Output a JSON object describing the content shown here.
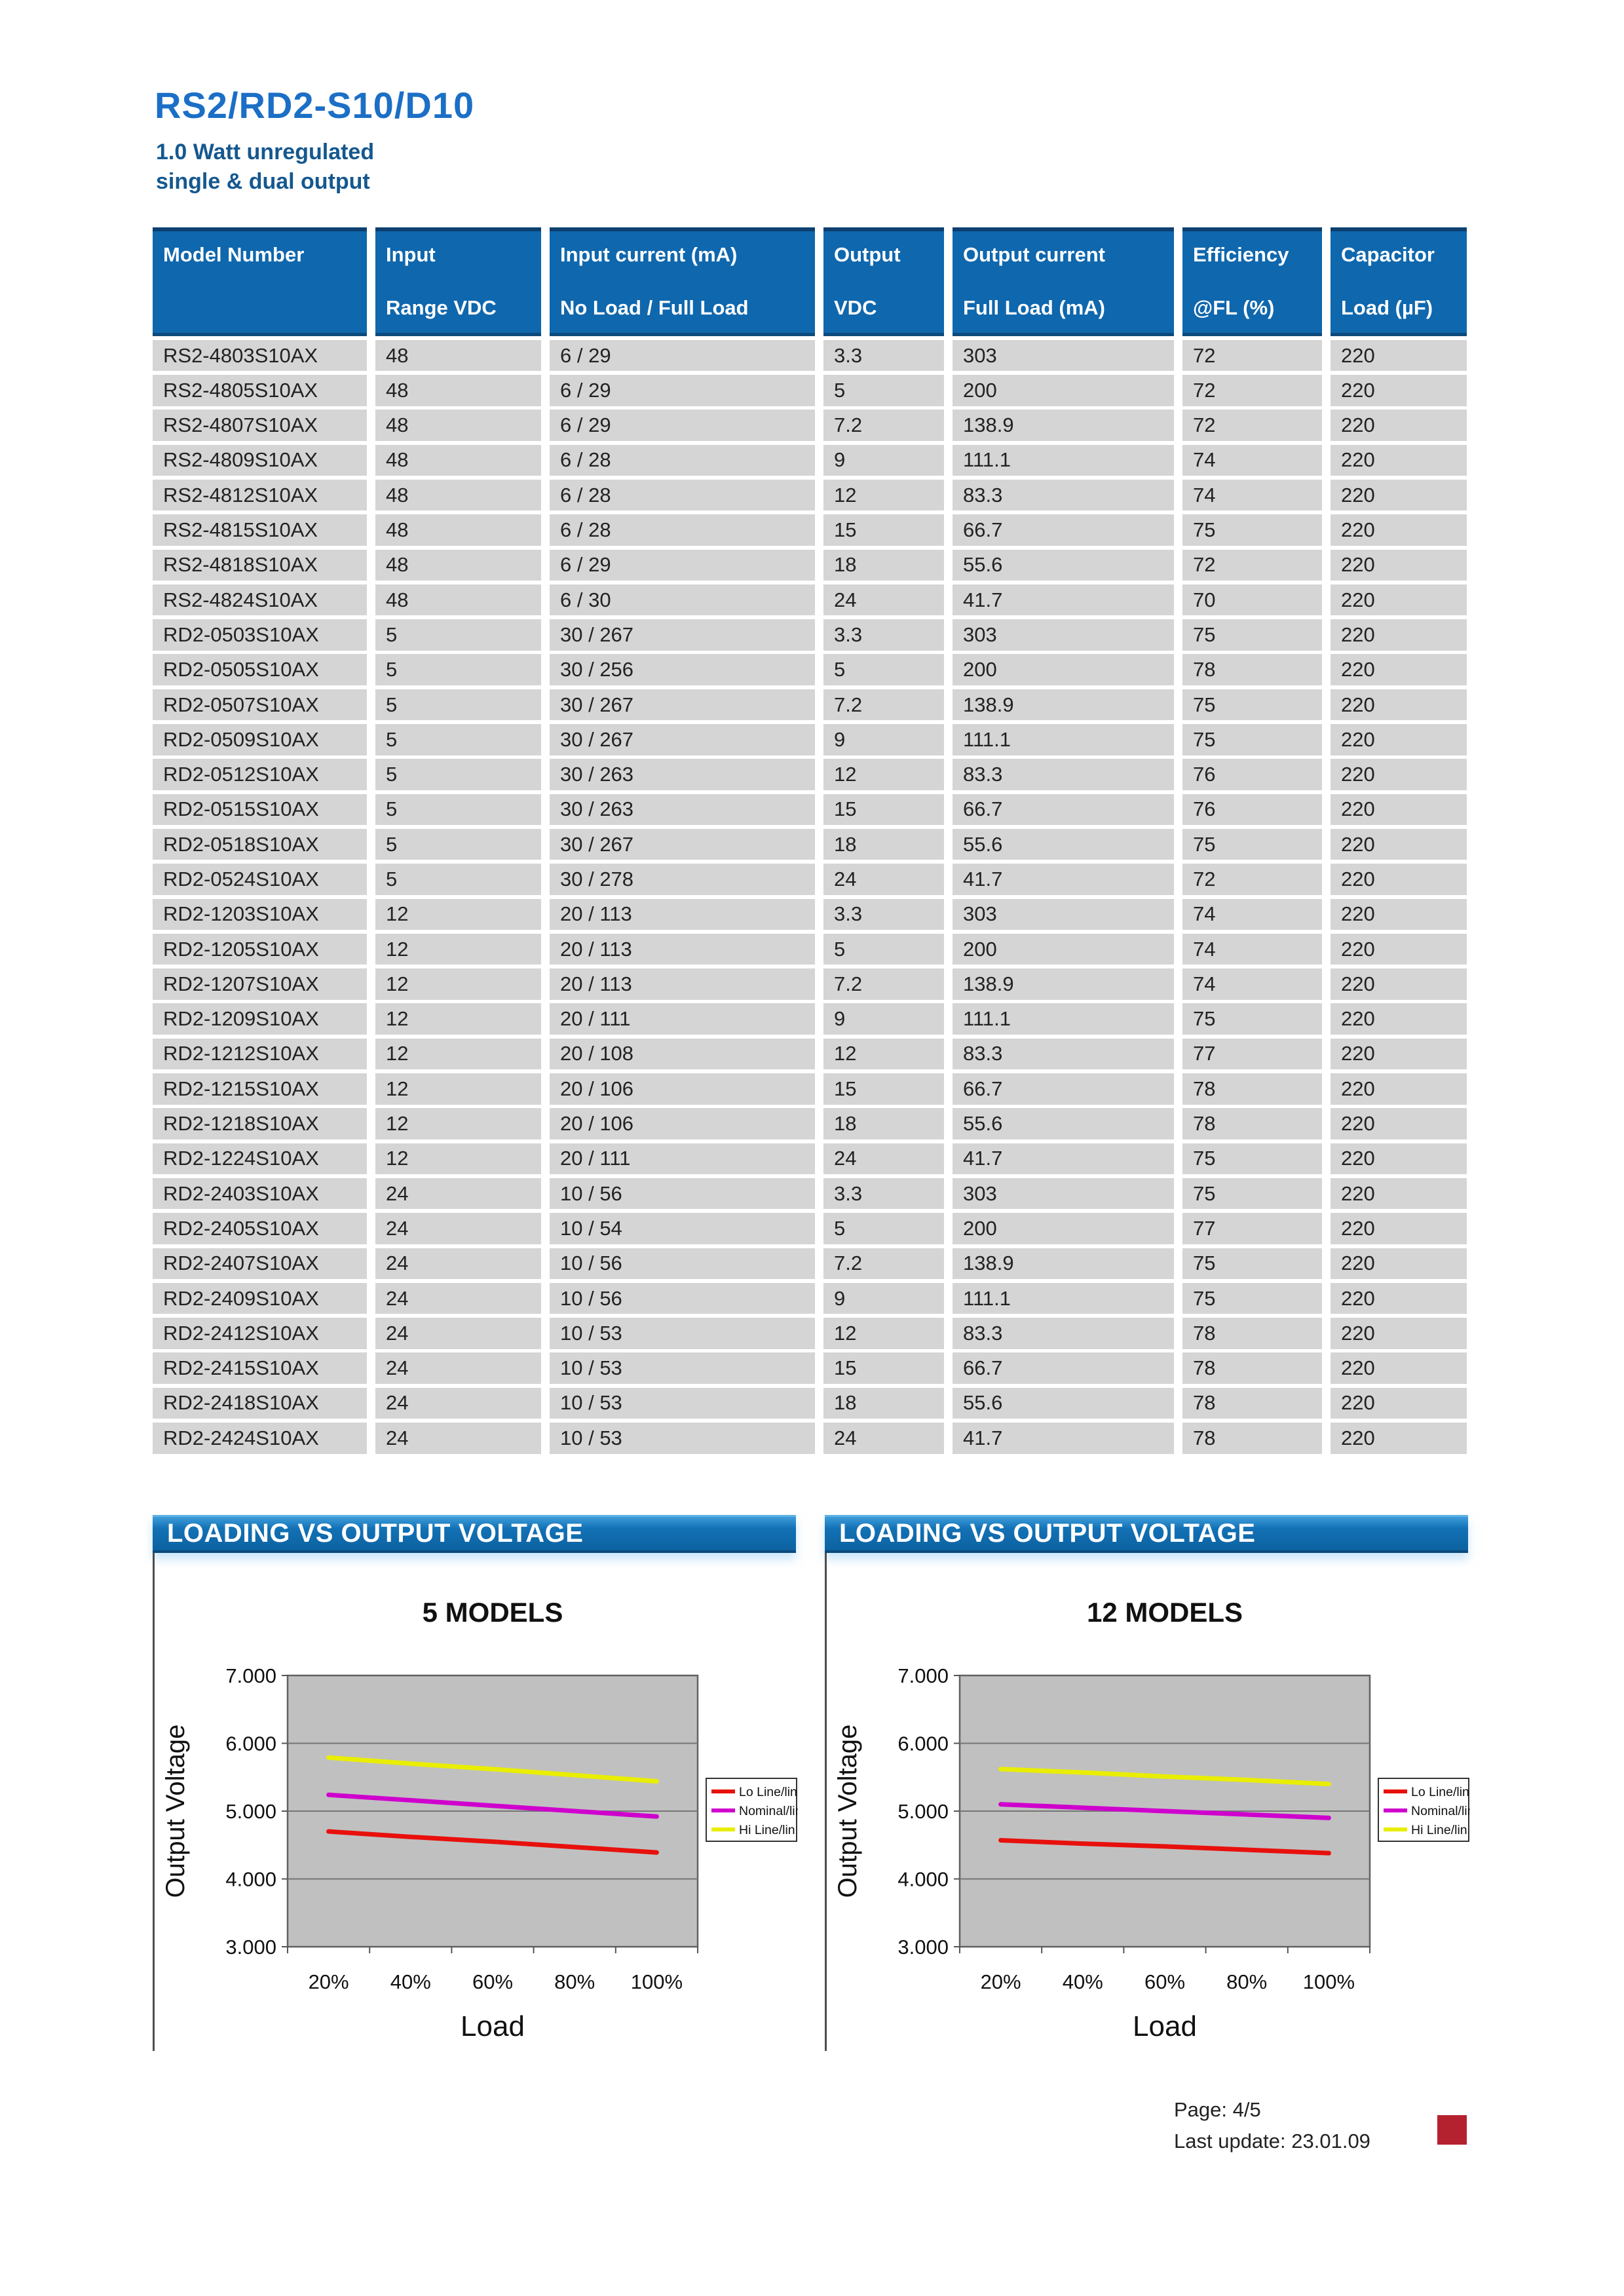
{
  "page": {
    "title": "RS2/RD2-S10/D10",
    "subtitle_line1": "1.0 Watt unregulated",
    "subtitle_line2": "single & dual output"
  },
  "table": {
    "headers": [
      {
        "line1": "Model Number",
        "line2": ""
      },
      {
        "line1": "Input",
        "line2": "Range VDC"
      },
      {
        "line1": "Input current (mA)",
        "line2": "No Load / Full Load"
      },
      {
        "line1": "Output",
        "line2": "VDC"
      },
      {
        "line1": "Output current",
        "line2": "Full Load (mA)"
      },
      {
        "line1": "Efficiency",
        "line2": "@FL (%)"
      },
      {
        "line1": "Capacitor",
        "line2": "Load (µF)"
      }
    ],
    "rows": [
      [
        "RS2-4803S10AX",
        "48",
        "6 / 29",
        "3.3",
        "303",
        "72",
        "220"
      ],
      [
        "RS2-4805S10AX",
        "48",
        "6 / 29",
        "5",
        "200",
        "72",
        "220"
      ],
      [
        "RS2-4807S10AX",
        "48",
        "6 / 29",
        "7.2",
        "138.9",
        "72",
        "220"
      ],
      [
        "RS2-4809S10AX",
        "48",
        "6 / 28",
        "9",
        "111.1",
        "74",
        "220"
      ],
      [
        "RS2-4812S10AX",
        "48",
        "6 / 28",
        "12",
        "83.3",
        "74",
        "220"
      ],
      [
        "RS2-4815S10AX",
        "48",
        "6 / 28",
        "15",
        "66.7",
        "75",
        "220"
      ],
      [
        "RS2-4818S10AX",
        "48",
        "6 / 29",
        "18",
        "55.6",
        "72",
        "220"
      ],
      [
        "RS2-4824S10AX",
        "48",
        "6 / 30",
        "24",
        "41.7",
        "70",
        "220"
      ],
      [
        "RD2-0503S10AX",
        "5",
        "30 / 267",
        "3.3",
        "303",
        "75",
        "220"
      ],
      [
        "RD2-0505S10AX",
        "5",
        "30 / 256",
        "5",
        "200",
        "78",
        "220"
      ],
      [
        "RD2-0507S10AX",
        "5",
        "30 / 267",
        "7.2",
        "138.9",
        "75",
        "220"
      ],
      [
        "RD2-0509S10AX",
        "5",
        "30 / 267",
        "9",
        "111.1",
        "75",
        "220"
      ],
      [
        "RD2-0512S10AX",
        "5",
        "30 / 263",
        "12",
        "83.3",
        "76",
        "220"
      ],
      [
        "RD2-0515S10AX",
        "5",
        "30 / 263",
        "15",
        "66.7",
        "76",
        "220"
      ],
      [
        "RD2-0518S10AX",
        "5",
        "30 / 267",
        "18",
        "55.6",
        "75",
        "220"
      ],
      [
        "RD2-0524S10AX",
        "5",
        "30 / 278",
        "24",
        "41.7",
        "72",
        "220"
      ],
      [
        "RD2-1203S10AX",
        "12",
        "20 / 113",
        "3.3",
        "303",
        "74",
        "220"
      ],
      [
        "RD2-1205S10AX",
        "12",
        "20 / 113",
        "5",
        "200",
        "74",
        "220"
      ],
      [
        "RD2-1207S10AX",
        "12",
        "20 / 113",
        "7.2",
        "138.9",
        "74",
        "220"
      ],
      [
        "RD2-1209S10AX",
        "12",
        "20 / 111",
        "9",
        "111.1",
        "75",
        "220"
      ],
      [
        "RD2-1212S10AX",
        "12",
        "20 / 108",
        "12",
        "83.3",
        "77",
        "220"
      ],
      [
        "RD2-1215S10AX",
        "12",
        "20 / 106",
        "15",
        "66.7",
        "78",
        "220"
      ],
      [
        "RD2-1218S10AX",
        "12",
        "20 / 106",
        "18",
        "55.6",
        "78",
        "220"
      ],
      [
        "RD2-1224S10AX",
        "12",
        "20 / 111",
        "24",
        "41.7",
        "75",
        "220"
      ],
      [
        "RD2-2403S10AX",
        "24",
        "10 / 56",
        "3.3",
        "303",
        "75",
        "220"
      ],
      [
        "RD2-2405S10AX",
        "24",
        "10 / 54",
        "5",
        "200",
        "77",
        "220"
      ],
      [
        "RD2-2407S10AX",
        "24",
        "10 / 56",
        "7.2",
        "138.9",
        "75",
        "220"
      ],
      [
        "RD2-2409S10AX",
        "24",
        "10 / 56",
        "9",
        "111.1",
        "75",
        "220"
      ],
      [
        "RD2-2412S10AX",
        "24",
        "10 / 53",
        "12",
        "83.3",
        "78",
        "220"
      ],
      [
        "RD2-2415S10AX",
        "24",
        "10 / 53",
        "15",
        "66.7",
        "78",
        "220"
      ],
      [
        "RD2-2418S10AX",
        "24",
        "10 / 53",
        "18",
        "55.6",
        "78",
        "220"
      ],
      [
        "RD2-2424S10AX",
        "24",
        "10 / 53",
        "24",
        "41.7",
        "78",
        "220"
      ]
    ]
  },
  "chart_data": [
    {
      "type": "line",
      "panel_title": "LOADING VS OUTPUT VOLTAGE",
      "title": "5 MODELS",
      "xlabel": "Load",
      "ylabel": "Output Voltage",
      "x_tick_labels": [
        "20%",
        "40%",
        "60%",
        "80%",
        "100%"
      ],
      "y_tick_labels": [
        "7.000",
        "6.000",
        "5.000",
        "4.000",
        "3.000"
      ],
      "ylim": [
        3.0,
        7.0
      ],
      "grid": "horizontal",
      "legend_position": "right",
      "plot_bg": "#c0c0c0",
      "series": [
        {
          "name": "Lo Line/lin",
          "color": "#e8100c",
          "values": [
            4.7,
            4.62,
            4.55,
            4.47,
            4.39
          ]
        },
        {
          "name": "Nominal/lin",
          "color": "#cf00ce",
          "values": [
            5.24,
            5.16,
            5.08,
            5.0,
            4.92
          ]
        },
        {
          "name": "Hi Line/lin",
          "color": "#e9ee00",
          "values": [
            5.79,
            5.7,
            5.62,
            5.53,
            5.44
          ]
        }
      ]
    },
    {
      "type": "line",
      "panel_title": "LOADING VS OUTPUT VOLTAGE",
      "title": "12 MODELS",
      "xlabel": "Load",
      "ylabel": "Output Voltage",
      "x_tick_labels": [
        "20%",
        "40%",
        "60%",
        "80%",
        "100%"
      ],
      "y_tick_labels": [
        "7.000",
        "6.000",
        "5.000",
        "4.000",
        "3.000"
      ],
      "ylim": [
        3.0,
        7.0
      ],
      "grid": "horizontal",
      "legend_position": "right",
      "plot_bg": "#c0c0c0",
      "series": [
        {
          "name": "Lo Line/lin",
          "color": "#e8100c",
          "values": [
            4.57,
            4.52,
            4.48,
            4.43,
            4.38
          ]
        },
        {
          "name": "Nominal/lin",
          "color": "#cf00ce",
          "values": [
            5.1,
            5.05,
            5.0,
            4.95,
            4.9
          ]
        },
        {
          "name": "Hi Line/lin",
          "color": "#e9ee00",
          "values": [
            5.62,
            5.57,
            5.51,
            5.46,
            5.4
          ]
        }
      ]
    }
  ],
  "footer": {
    "page_label": "Page: 4/5",
    "update_label": "Last update: 23.01.09"
  },
  "colors": {
    "title_blue": "#1b6fc6",
    "subtitle_blue": "#15588f",
    "table_header_blue": "#0f67ad",
    "row_gray": "#d5d5d5",
    "panel_bar_blue": "#1271b5",
    "plot_background": "#c0c0c0",
    "brand_red": "#b5222f"
  }
}
